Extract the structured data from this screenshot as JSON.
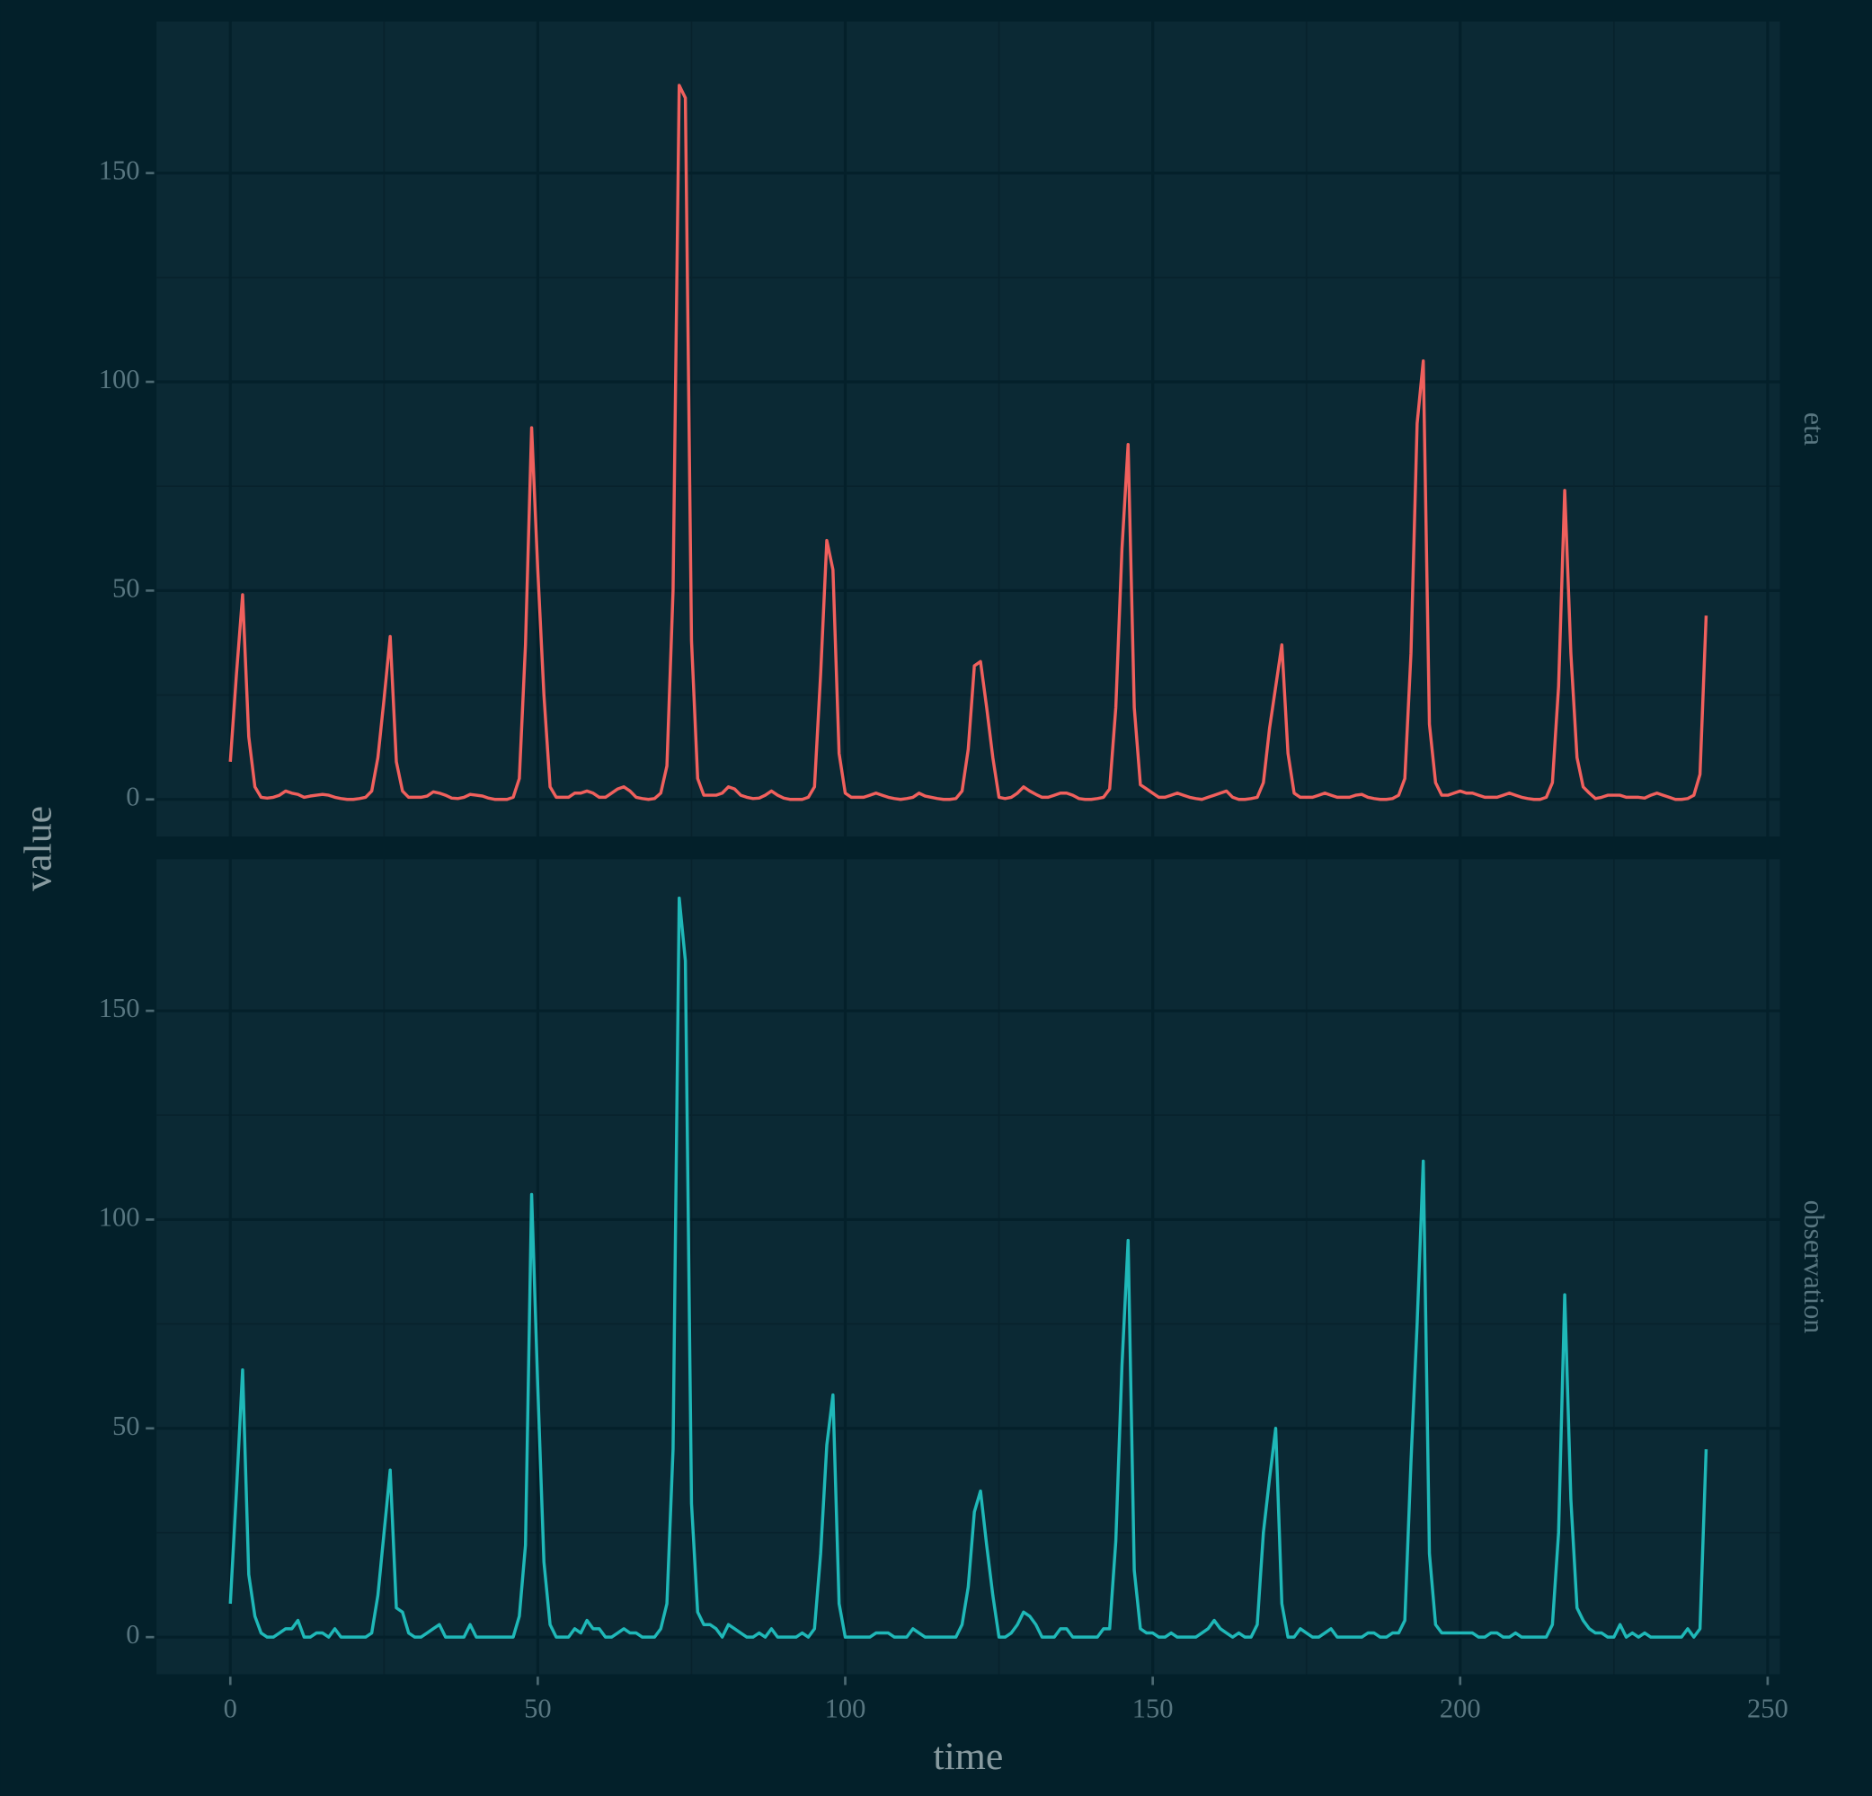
{
  "chart_data": {
    "type": "line",
    "xlabel": "time",
    "ylabel": "value",
    "x": [
      0,
      1,
      2,
      3,
      4,
      5,
      6,
      7,
      8,
      9,
      10,
      11,
      12,
      13,
      14,
      15,
      16,
      17,
      18,
      19,
      20,
      21,
      22,
      23,
      24,
      25,
      26,
      27,
      28,
      29,
      30,
      31,
      32,
      33,
      34,
      35,
      36,
      37,
      38,
      39,
      40,
      41,
      42,
      43,
      44,
      45,
      46,
      47,
      48,
      49,
      50,
      51,
      52,
      53,
      54,
      55,
      56,
      57,
      58,
      59,
      60,
      61,
      62,
      63,
      64,
      65,
      66,
      67,
      68,
      69,
      70,
      71,
      72,
      73,
      74,
      75,
      76,
      77,
      78,
      79,
      80,
      81,
      82,
      83,
      84,
      85,
      86,
      87,
      88,
      89,
      90,
      91,
      92,
      93,
      94,
      95,
      96,
      97,
      98,
      99,
      100,
      101,
      102,
      103,
      104,
      105,
      106,
      107,
      108,
      109,
      110,
      111,
      112,
      113,
      114,
      115,
      116,
      117,
      118,
      119,
      120,
      121,
      122,
      123,
      124,
      125,
      126,
      127,
      128,
      129,
      130,
      131,
      132,
      133,
      134,
      135,
      136,
      137,
      138,
      139,
      140,
      141,
      142,
      143,
      144,
      145,
      146,
      147,
      148,
      149,
      150,
      151,
      152,
      153,
      154,
      155,
      156,
      157,
      158,
      159,
      160,
      161,
      162,
      163,
      164,
      165,
      166,
      167,
      168,
      169,
      170,
      171,
      172,
      173,
      174,
      175,
      176,
      177,
      178,
      179,
      180,
      181,
      182,
      183,
      184,
      185,
      186,
      187,
      188,
      189,
      190,
      191,
      192,
      193,
      194,
      195,
      196,
      197,
      198,
      199,
      200,
      201,
      202,
      203,
      204,
      205,
      206,
      207,
      208,
      209,
      210,
      211,
      212,
      213,
      214,
      215,
      216,
      217,
      218,
      219,
      220,
      221,
      222,
      223,
      224,
      225,
      226,
      227,
      228,
      229,
      230,
      231,
      232,
      233,
      234,
      235,
      236,
      237,
      238,
      239,
      240
    ],
    "xlim": [
      -12,
      252
    ],
    "xticks": [
      0,
      50,
      100,
      150,
      200,
      250
    ],
    "ylim": [
      -8.9,
      186.3
    ],
    "yticks": [
      0,
      50,
      100,
      150
    ],
    "grid": true,
    "series": [
      {
        "name": "eta",
        "color": "#f0605d",
        "values": [
          9,
          30,
          49,
          15,
          3,
          0.5,
          0.3,
          0.5,
          1,
          2,
          1.5,
          1.2,
          0.5,
          0.8,
          1,
          1.2,
          1,
          0.5,
          0.2,
          0,
          0,
          0.2,
          0.5,
          2,
          10,
          24,
          39,
          9,
          2,
          0.5,
          0.5,
          0.5,
          0.8,
          1.8,
          1.5,
          1,
          0.3,
          0.2,
          0.5,
          1.2,
          1,
          0.8,
          0.3,
          0,
          0,
          0,
          0.5,
          5,
          37,
          89,
          55,
          25,
          3,
          0.5,
          0.5,
          0.5,
          1.5,
          1.5,
          2,
          1.5,
          0.5,
          0.5,
          1.5,
          2.5,
          3,
          2,
          0.5,
          0.2,
          0,
          0.2,
          1.5,
          8,
          50,
          171,
          168,
          38,
          5,
          1,
          1,
          1,
          1.5,
          3,
          2.5,
          1,
          0.5,
          0.2,
          0.3,
          1,
          2,
          1,
          0.3,
          0,
          0,
          0,
          0.5,
          3,
          30,
          62,
          55,
          11,
          1.5,
          0.5,
          0.5,
          0.5,
          1,
          1.5,
          1,
          0.5,
          0.2,
          0,
          0.2,
          0.5,
          1.5,
          0.8,
          0.5,
          0.2,
          0,
          0,
          0.2,
          2,
          12,
          32,
          33,
          22,
          10,
          0.5,
          0.2,
          0.5,
          1.5,
          3,
          2,
          1.2,
          0.5,
          0.5,
          1,
          1.5,
          1.5,
          1,
          0.2,
          0,
          0,
          0.2,
          0.5,
          2.5,
          22,
          60,
          85,
          22,
          3.5,
          2.5,
          1.5,
          0.5,
          0.5,
          1,
          1.5,
          1,
          0.5,
          0.2,
          0,
          0.5,
          1,
          1.5,
          2,
          0.5,
          0,
          0,
          0.2,
          0.5,
          4,
          17,
          27,
          37,
          11,
          1.5,
          0.5,
          0.5,
          0.5,
          1,
          1.5,
          1,
          0.5,
          0.5,
          0.5,
          1,
          1.2,
          0.5,
          0.2,
          0,
          0,
          0.2,
          1,
          5,
          35,
          90,
          105,
          18,
          4,
          1,
          1,
          1.5,
          2,
          1.5,
          1.5,
          1,
          0.5,
          0.5,
          0.5,
          1,
          1.5,
          1,
          0.5,
          0.2,
          0,
          0,
          0.5,
          4,
          27,
          74,
          35,
          10,
          3,
          1.5,
          0.2,
          0.5,
          1,
          1,
          1,
          0.5,
          0.5,
          0.5,
          0.3,
          1,
          1.5,
          1,
          0.5,
          0,
          0,
          0.2,
          1,
          6,
          44
        ]
      },
      {
        "name": "observation",
        "color": "#1fb8b8",
        "values": [
          8,
          35,
          64,
          15,
          5,
          1,
          0,
          0,
          1,
          2,
          2,
          4,
          0,
          0,
          1,
          1,
          0,
          2,
          0,
          0,
          0,
          0,
          0,
          1,
          10,
          25,
          40,
          7,
          6,
          1,
          0,
          0,
          1,
          2,
          3,
          0,
          0,
          0,
          0,
          3,
          0,
          0,
          0,
          0,
          0,
          0,
          0,
          5,
          22,
          106,
          60,
          18,
          3,
          0,
          0,
          0,
          2,
          1,
          4,
          2,
          2,
          0,
          0,
          1,
          2,
          1,
          1,
          0,
          0,
          0,
          2,
          8,
          45,
          177,
          162,
          32,
          6,
          3,
          3,
          2,
          0,
          3,
          2,
          1,
          0,
          0,
          1,
          0,
          2,
          0,
          0,
          0,
          0,
          1,
          0,
          2,
          20,
          46,
          58,
          8,
          0,
          0,
          0,
          0,
          0,
          1,
          1,
          1,
          0,
          0,
          0,
          2,
          1,
          0,
          0,
          0,
          0,
          0,
          0,
          3,
          12,
          30,
          35,
          22,
          10,
          0,
          0,
          1,
          3,
          6,
          5,
          3,
          0,
          0,
          0,
          2,
          2,
          0,
          0,
          0,
          0,
          0,
          2,
          2,
          23,
          65,
          95,
          16,
          2,
          1,
          1,
          0,
          0,
          1,
          0,
          0,
          0,
          0,
          1,
          2,
          4,
          2,
          1,
          0,
          1,
          0,
          0,
          3,
          25,
          38,
          50,
          8,
          0,
          0,
          2,
          1,
          0,
          0,
          1,
          2,
          0,
          0,
          0,
          0,
          0,
          1,
          1,
          0,
          0,
          1,
          1,
          4,
          42,
          75,
          114,
          20,
          3,
          1,
          1,
          1,
          1,
          1,
          1,
          0,
          0,
          1,
          1,
          0,
          0,
          1,
          0,
          0,
          0,
          0,
          0,
          3,
          25,
          82,
          33,
          7,
          4,
          2,
          1,
          1,
          0,
          0,
          3,
          0,
          1,
          0,
          1,
          0,
          0,
          0,
          0,
          0,
          0,
          2,
          0,
          2,
          45
        ]
      }
    ]
  }
}
